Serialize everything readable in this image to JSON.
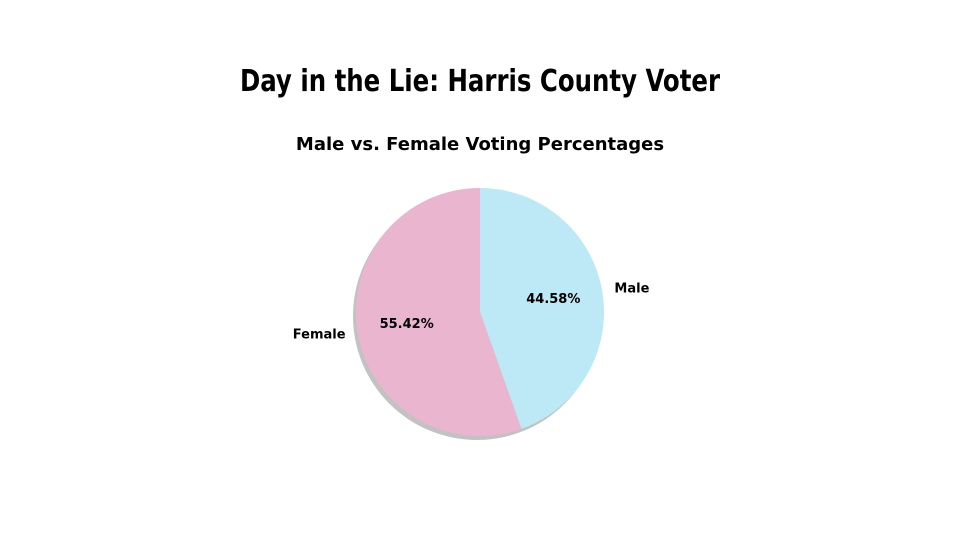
{
  "slide_title": "Day in the Lie: Harris County Voter",
  "chart_data": {
    "type": "pie",
    "title": "Male vs. Female Voting Percentages",
    "categories": [
      "Male",
      "Female"
    ],
    "values": [
      44.58,
      55.42
    ],
    "value_labels": [
      "44.58%",
      "55.42%"
    ],
    "colors": [
      "#bce9f5",
      "#eab5cf"
    ]
  }
}
